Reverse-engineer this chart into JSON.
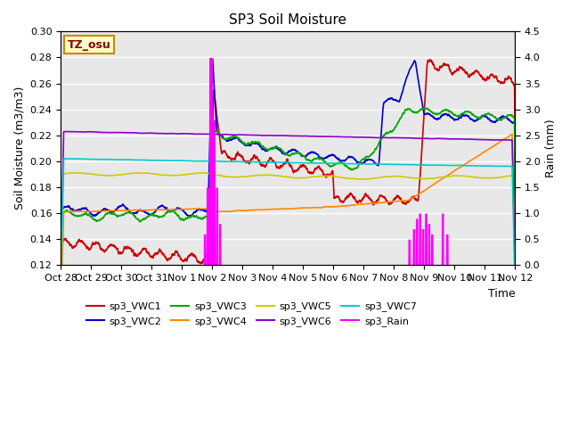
{
  "title": "SP3 Soil Moisture",
  "ylabel_left": "Soil Moisture (m3/m3)",
  "ylabel_right": "Rain (mm)",
  "xlabel": "Time",
  "ylim_left": [
    0.12,
    0.3
  ],
  "ylim_right": [
    0.0,
    4.5
  ],
  "yticks_left": [
    0.12,
    0.14,
    0.16,
    0.18,
    0.2,
    0.22,
    0.24,
    0.26,
    0.28,
    0.3
  ],
  "yticks_right": [
    0.0,
    0.5,
    1.0,
    1.5,
    2.0,
    2.5,
    3.0,
    3.5,
    4.0,
    4.5
  ],
  "bg_color": "#e8e8e8",
  "tz_label": "TZ_osu",
  "xtick_labels": [
    "Oct 28",
    "Oct 29",
    "Oct 30",
    "Oct 31",
    "Nov 1",
    "Nov 2",
    "Nov 3",
    "Nov 4",
    "Nov 5",
    "Nov 6",
    "Nov 7",
    "Nov 8",
    "Nov 9",
    "Nov 10",
    "Nov 11",
    "Nov 12"
  ],
  "series_colors": {
    "VWC1": "#cc0000",
    "VWC2": "#0000cc",
    "VWC3": "#00aa00",
    "VWC4": "#ff8800",
    "VWC5": "#cccc00",
    "VWC6": "#8800cc",
    "VWC7": "#00cccc",
    "Rain": "#ff00ff"
  }
}
